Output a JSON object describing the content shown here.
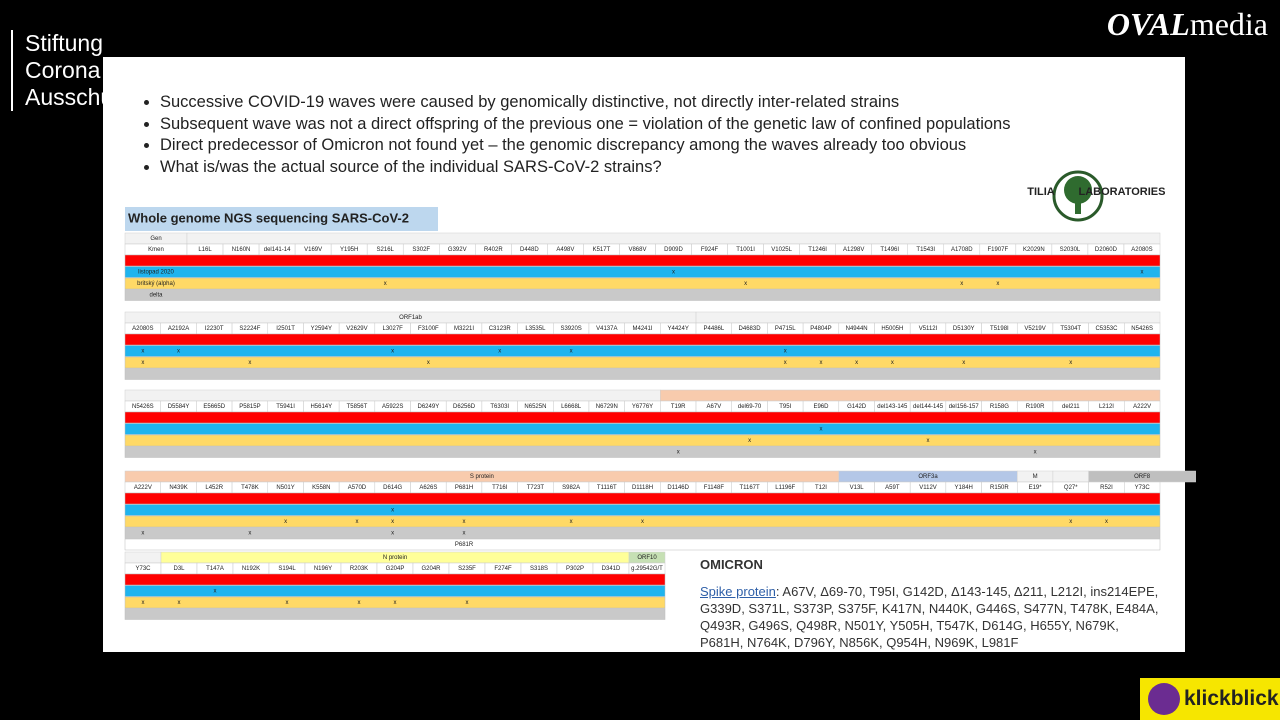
{
  "channel": {
    "name_lines": [
      "Stiftung",
      "Corona",
      "Ausschuss"
    ],
    "logo_a": "OVAL",
    "logo_b": "media",
    "sponsor": "klickblick"
  },
  "slide": {
    "bullets": [
      "Successive COVID-19 waves were caused by genomically distinctive, not directly inter-related strains",
      "Subsequent wave was not a direct offspring of the previous one = violation of the genetic law of confined populations",
      "Direct predecessor of Omicron not found yet – the genomic discrepancy among the waves already too obvious",
      "What is/was the actual source of the individual SARS-CoV-2 strains?"
    ],
    "lab_logo": [
      "TILIA",
      "LABORATORIES"
    ],
    "table_title": "Whole genome NGS sequencing SARS-CoV-2",
    "blocks": [
      {
        "groups": [
          {
            "label": "Gen",
            "span": 1
          },
          {
            "span": 27
          }
        ],
        "headers": [
          "Kmen",
          "L16L",
          "N160N",
          "del141-14",
          "V169V",
          "Y195H",
          "S216L",
          "S302F",
          "G392V",
          "R402R",
          "D448D",
          "A498V",
          "K517T",
          "V868V",
          "D909D",
          "F924F",
          "T1001I",
          "V1025L",
          "T1246I",
          "A1298V",
          "T1496I",
          "T1543I",
          "A1708D",
          "F1907F",
          "K2029N",
          "S2030L",
          "D2060D",
          "A2080S"
        ],
        "rows": [
          {
            "color": "#ff0000"
          },
          {
            "color": "#1fb4ee",
            "cells": [
              "listopad 2020",
              null,
              null,
              null,
              null,
              null,
              null,
              null,
              null,
              null,
              null,
              null,
              null,
              null,
              "x",
              null,
              null,
              null,
              null,
              null,
              null,
              null,
              null,
              null,
              null,
              null,
              null,
              "x"
            ]
          },
          {
            "color": "#ffd966",
            "cells": [
              "britský (alpha)",
              null,
              null,
              null,
              null,
              null,
              "x",
              null,
              null,
              null,
              null,
              null,
              null,
              null,
              null,
              null,
              "x",
              null,
              null,
              null,
              null,
              null,
              "x",
              "x",
              null,
              null,
              null,
              null
            ]
          },
          {
            "color": "#c9c9c9",
            "cells": [
              "delta",
              null,
              null,
              null,
              null,
              null,
              null,
              null,
              null,
              null,
              null,
              null,
              null,
              null,
              null,
              null,
              null,
              null,
              null,
              null,
              null,
              null,
              null,
              null,
              null,
              null,
              null,
              null
            ]
          }
        ]
      },
      {
        "groups": [
          {
            "label": "ORF1ab",
            "span": 16
          },
          {
            "span": 13
          }
        ],
        "headers": [
          "A2080S",
          "A2192A",
          "I2230T",
          "S2224F",
          "I2501T",
          "Y2594Y",
          "V2629V",
          "L3027F",
          "F3100F",
          "M3221I",
          "C3123R",
          "L3535L",
          "S3920S",
          "V4137A",
          "M4241I",
          "Y4424Y",
          "P4486L",
          "D4683D",
          "P4715L",
          "P4804P",
          "N4944N",
          "H5005H",
          "V5112I",
          "D5130Y",
          "T5198I",
          "V5219V",
          "T5304T",
          "C5353C",
          "N5426S"
        ],
        "rows": [
          {
            "color": "#ff0000"
          },
          {
            "color": "#1fb4ee",
            "cells": [
              "x",
              "x",
              null,
              null,
              null,
              null,
              null,
              "x",
              null,
              null,
              "x",
              null,
              "x",
              null,
              null,
              null,
              null,
              null,
              "x",
              null,
              null,
              null,
              null,
              null,
              null,
              null,
              null,
              null,
              null
            ]
          },
          {
            "color": "#ffd966",
            "cells": [
              "x",
              null,
              null,
              "x",
              null,
              null,
              null,
              null,
              "x",
              null,
              null,
              null,
              null,
              null,
              null,
              null,
              null,
              null,
              "x",
              "x",
              "x",
              "x",
              null,
              "x",
              null,
              null,
              "x",
              null,
              null
            ]
          },
          {
            "color": "#c9c9c9"
          }
        ]
      },
      {
        "groups": [
          {
            "span": 15
          },
          {
            "span": 14,
            "color": "#f8cbad"
          }
        ],
        "headers": [
          "N5426S",
          "D5584Y",
          "E5665D",
          "P5815P",
          "T5941I",
          "H5614Y",
          "T5856T",
          "A5922S",
          "D6249Y",
          "D6256D",
          "T6303I",
          "N6525N",
          "L6668L",
          "N6729N",
          "Y6776Y",
          "T19R",
          "A67V",
          "del69-70",
          "T95I",
          "E96D",
          "G142D",
          "del143-145",
          "del144-145",
          "del156-157",
          "R158G",
          "R190R",
          "del211",
          "L212I",
          "A222V"
        ],
        "rows": [
          {
            "color": "#ff0000"
          },
          {
            "color": "#1fb4ee",
            "cells": [
              null,
              null,
              null,
              null,
              null,
              null,
              null,
              null,
              null,
              null,
              null,
              null,
              null,
              null,
              null,
              null,
              null,
              null,
              null,
              "x",
              null,
              null,
              null,
              null,
              null,
              null,
              null,
              null,
              null
            ]
          },
          {
            "color": "#ffd966",
            "cells": [
              null,
              null,
              null,
              null,
              null,
              null,
              null,
              null,
              null,
              null,
              null,
              null,
              null,
              null,
              null,
              null,
              null,
              "x",
              null,
              null,
              null,
              null,
              "x",
              null,
              null,
              null,
              null,
              null,
              null
            ]
          },
          {
            "color": "#c9c9c9",
            "cells": [
              null,
              null,
              null,
              null,
              null,
              null,
              null,
              null,
              null,
              null,
              null,
              null,
              null,
              null,
              null,
              "x",
              null,
              null,
              null,
              null,
              null,
              null,
              null,
              null,
              null,
              "x",
              null,
              null,
              null
            ]
          }
        ]
      },
      {
        "groups": [
          {
            "label": "S protein",
            "span": 20,
            "color": "#f8cbad"
          },
          {
            "label": "ORF3a",
            "span": 5,
            "color": "#b4c7e7"
          },
          {
            "label": "M",
            "span": 1
          },
          {
            "span": 1
          },
          {
            "label": "ORF8",
            "span": 3,
            "color": "#bfbfbf"
          }
        ],
        "headers": [
          "A222V",
          "N439K",
          "L452R",
          "T478K",
          "N501Y",
          "K558N",
          "A570D",
          "D614G",
          "A626S",
          "P681H",
          "T716I",
          "T723T",
          "S982A",
          "T1116T",
          "D1118H",
          "D1146D",
          "F1148F",
          "T1167T",
          "L1196F",
          "T12I",
          "V13L",
          "A59T",
          "V112V",
          "Y184H",
          "R150R",
          "E19*",
          "Q27*",
          "R52I",
          "Y73C"
        ],
        "rows": [
          {
            "color": "#ff0000"
          },
          {
            "color": "#1fb4ee",
            "cells": [
              null,
              null,
              null,
              null,
              null,
              null,
              null,
              "x",
              null,
              null,
              null,
              null,
              null,
              null,
              null,
              null,
              null,
              null,
              null,
              null,
              null,
              null,
              null,
              null,
              null,
              null,
              null,
              null,
              null
            ]
          },
          {
            "color": "#ffd966",
            "cells": [
              null,
              null,
              null,
              null,
              "x",
              null,
              "x",
              "x",
              null,
              "x",
              null,
              null,
              "x",
              null,
              "x",
              null,
              null,
              null,
              null,
              null,
              null,
              null,
              null,
              null,
              null,
              null,
              "x",
              "x",
              null
            ]
          },
          {
            "color": "#c9c9c9",
            "cells": [
              "x",
              null,
              null,
              "x",
              null,
              null,
              null,
              "x",
              null,
              "x",
              null,
              null,
              null,
              null,
              null,
              null,
              null,
              null,
              null,
              null,
              null,
              null,
              null,
              null,
              null,
              null,
              null,
              null,
              null
            ]
          },
          {
            "color": "#ffffff",
            "cells": [
              null,
              null,
              null,
              null,
              null,
              null,
              null,
              null,
              null,
              "P681R",
              null,
              null,
              null,
              null,
              null,
              null,
              null,
              null,
              null,
              null,
              null,
              null,
              null,
              null,
              null,
              null,
              null,
              null,
              null
            ]
          }
        ]
      },
      {
        "groups": [
          {
            "span": 1
          },
          {
            "label": "N protein",
            "span": 13,
            "color": "#ffff99"
          },
          {
            "label": "ORF10",
            "span": 1,
            "color": "#c6e0b4"
          }
        ],
        "headers": [
          "Y73C",
          "D3L",
          "T147A",
          "N192K",
          "S194L",
          "N196Y",
          "R203K",
          "G204P",
          "G204R",
          "S235F",
          "F274F",
          "S318S",
          "P302P",
          "D341D",
          "g.29542G/T"
        ],
        "rows": [
          {
            "color": "#ff0000"
          },
          {
            "color": "#1fb4ee",
            "cells": [
              null,
              null,
              "x",
              null,
              null,
              null,
              null,
              null,
              null,
              null,
              null,
              null,
              null,
              null,
              null
            ]
          },
          {
            "color": "#ffd966",
            "cells": [
              "x",
              "x",
              null,
              null,
              "x",
              null,
              "x",
              "x",
              null,
              "x",
              null,
              null,
              null,
              null,
              null
            ]
          },
          {
            "color": "#c9c9c9"
          }
        ]
      }
    ],
    "omicron": {
      "title": "OMICRON",
      "label": "Spike protein",
      "text": ": A67V, Δ69-70, T95I, G142D, Δ143-145, Δ211, L212I, ins214EPE, G339D, S371L, S373P, S375F, K417N, N440K, G446S, S477N, T478K, E484A, Q493R, G496S, Q498R, N501Y, Y505H, T547K, D614G, H655Y, N679K, P681H, N764K, D796Y, N856K, Q954H, N969K, L981F"
    }
  }
}
